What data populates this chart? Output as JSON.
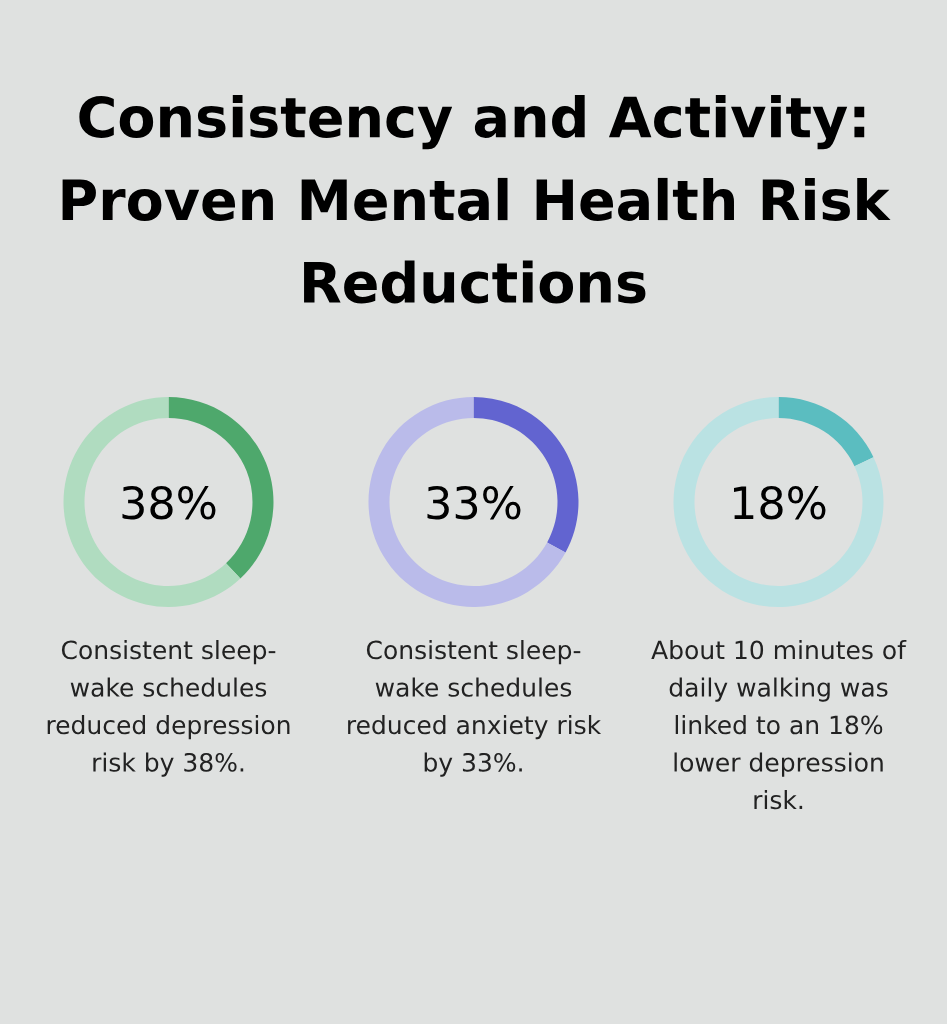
{
  "chart_data": [
    {
      "type": "donut",
      "title": "Consistency and Activity: Proven Mental Health Risk Reductions",
      "categories": [
        null,
        null
      ],
      "values": [
        38,
        62
      ],
      "colors": [
        "#4ea86c",
        "#b0dcc0"
      ],
      "annotations": [
        "38%",
        "Consistent sleep-wake schedules reduced depression risk by 38%."
      ]
    },
    {
      "type": "donut",
      "categories": [
        null,
        null
      ],
      "values": [
        33,
        67
      ],
      "colors": [
        "#6264d0",
        "#babbea"
      ],
      "annotations": [
        "33%",
        "Consistent sleep-wake schedules reduced anxiety risk by 33%."
      ]
    },
    {
      "type": "donut",
      "categories": [
        null,
        null
      ],
      "values": [
        18,
        82
      ],
      "colors": [
        "#5bbdc0",
        "#bae2e3"
      ],
      "annotations": [
        "18%",
        "About 10 minutes of daily walking was linked to an 18% lower depression risk."
      ]
    }
  ]
}
